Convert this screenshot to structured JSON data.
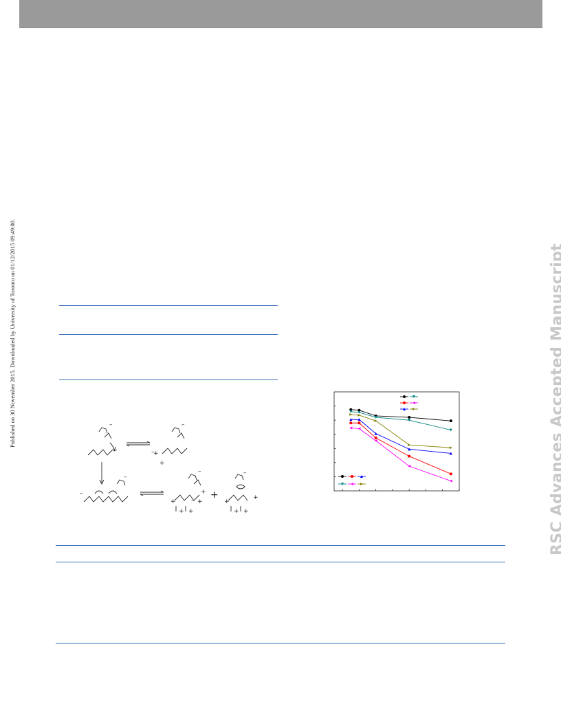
{
  "sidebar": {
    "published_note": "Published on 30 November 2015. Downloaded by University of Toronto on 01/12/2015 09:49:00."
  },
  "watermark": {
    "text": "RSC Advances Accepted Manuscript",
    "color": "#c8c8c8"
  },
  "colors": {
    "header_bar": "#9a9a9a",
    "rule": "#3b6fb8"
  },
  "scheme": {
    "charges": [
      "–",
      "–",
      "+",
      "+",
      "–",
      "–",
      "–",
      "+",
      "+",
      "–",
      "+",
      "+",
      "–",
      "+",
      "+",
      "–",
      "+",
      "+",
      "+"
    ]
  },
  "chart_data": {
    "type": "line",
    "x": [
      1,
      2,
      4,
      8,
      13
    ],
    "series": [
      {
        "values": [
          9.5,
          9.4,
          8.6,
          8.4,
          7.9
        ],
        "color": "#000000",
        "marker": "circle"
      },
      {
        "values": [
          9.2,
          9.1,
          8.4,
          8.0,
          6.6
        ],
        "color": "#008080",
        "marker": "triangle-down"
      },
      {
        "values": [
          7.6,
          7.6,
          5.5,
          2.9,
          0.4
        ],
        "color": "#ff0000",
        "marker": "circle"
      },
      {
        "values": [
          6.9,
          6.8,
          5.1,
          1.5,
          -0.6
        ],
        "color": "#ff00ff",
        "marker": "triangle-left"
      },
      {
        "values": [
          8.1,
          8.1,
          6.1,
          3.9,
          3.3
        ],
        "color": "#0000ff",
        "marker": "triangle-up"
      },
      {
        "values": [
          8.8,
          8.7,
          7.9,
          4.5,
          4.1
        ],
        "color": "#808000",
        "marker": "triangle-right"
      }
    ],
    "xlim": [
      -1,
      14
    ],
    "ylim": [
      -2,
      12
    ]
  }
}
